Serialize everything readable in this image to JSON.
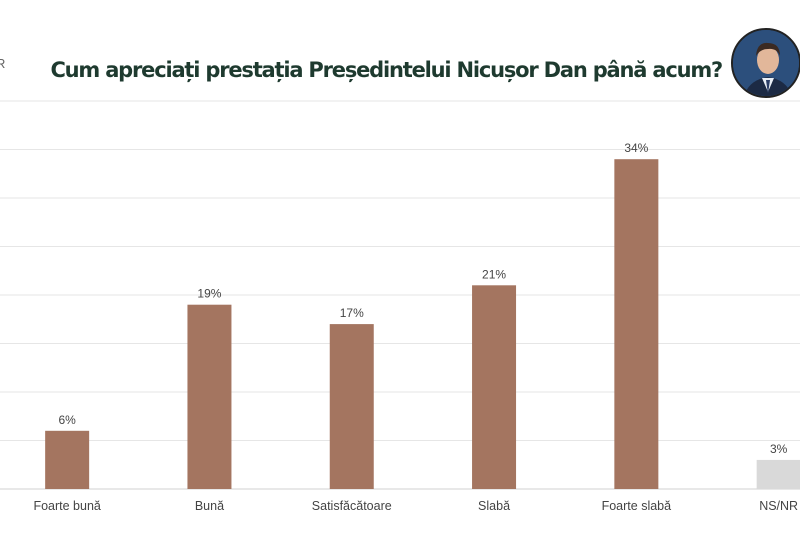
{
  "header": {
    "title": "Cum apreciați prestația Președintelui Nicușor Dan până acum?",
    "logo_fragment": "R"
  },
  "chart_data": {
    "type": "bar",
    "title": "Cum apreciați prestația Președintelui Nicușor Dan până acum?",
    "categories": [
      "Foarte bună",
      "Bună",
      "Satisfăcătoare",
      "Slabă",
      "Foarte slabă",
      "NS/NR"
    ],
    "values": [
      6,
      19,
      17,
      21,
      34,
      3
    ],
    "labels": [
      "6%",
      "19%",
      "17%",
      "21%",
      "34%",
      "3%"
    ],
    "colors": [
      "#a47560",
      "#a47560",
      "#a47560",
      "#a47560",
      "#a47560",
      "#d9d9d9"
    ],
    "ylim": [
      0,
      40
    ],
    "grid": true,
    "grid_step": 5,
    "xlabel": "",
    "ylabel": ""
  }
}
